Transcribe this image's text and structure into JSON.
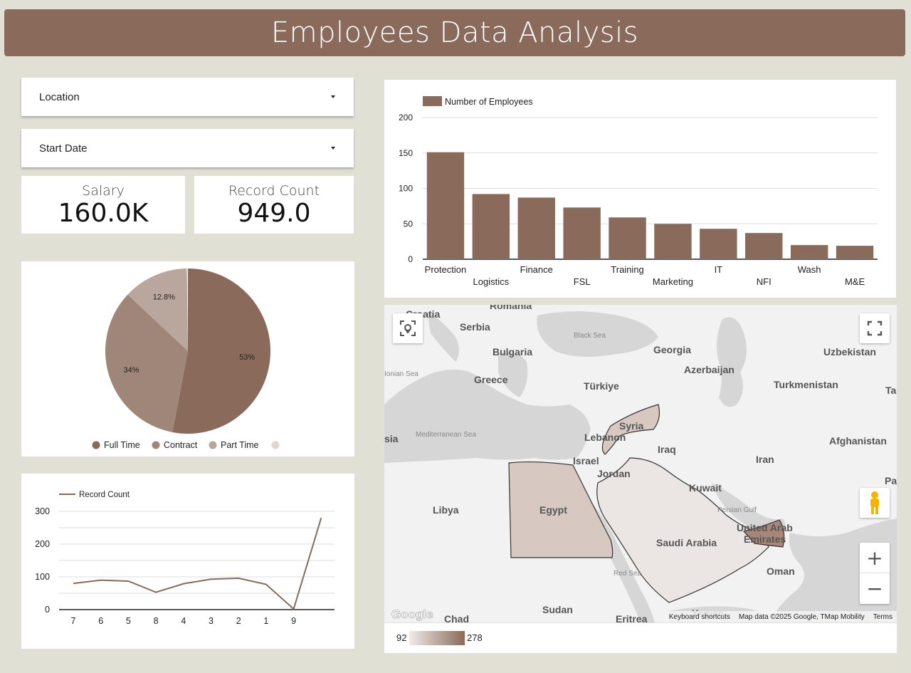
{
  "title": "Employees Data Analysis",
  "filters": {
    "location_label": "Location",
    "start_date_label": "Start Date"
  },
  "kpis": {
    "salary_label": "Salary",
    "salary_value": "160.0K",
    "record_count_label": "Record Count",
    "record_count_value": "949.0"
  },
  "colors": {
    "brand": "#8a6a5a",
    "full_time": "#8a6a5a",
    "contract": "#a08678",
    "part_time": "#b9a69c",
    "other": "#e0d5cf"
  },
  "chart_data": [
    {
      "type": "bar",
      "legend": "Number of Employees",
      "categories": [
        "Protection",
        "Logistics",
        "Finance",
        "FSL",
        "Training",
        "Marketing",
        "IT",
        "NFI",
        "Wash",
        "M&E"
      ],
      "values": [
        151,
        92,
        87,
        73,
        59,
        50,
        43,
        37,
        20,
        19
      ],
      "yticks": [
        "0",
        "50",
        "100",
        "150",
        "200"
      ],
      "ylim": [
        0,
        200
      ]
    },
    {
      "type": "pie",
      "categories": [
        "Full Time",
        "Contract",
        "Part Time",
        ""
      ],
      "values": [
        53,
        34,
        12.8,
        0.2
      ],
      "labels": [
        "53%",
        "34%",
        "12.8%"
      ]
    },
    {
      "type": "line",
      "legend": "Record Count",
      "categories": [
        "7",
        "6",
        "5",
        "8",
        "4",
        "3",
        "2",
        "1",
        "9",
        ""
      ],
      "values": [
        80,
        90,
        87,
        53,
        79,
        93,
        96,
        77,
        2,
        280
      ],
      "yticks": [
        "0",
        "100",
        "200",
        "300"
      ],
      "ylim": [
        0,
        300
      ]
    }
  ],
  "map": {
    "labels": {
      "croatia": "Croatia",
      "romania": "Romania",
      "serbia": "Serbia",
      "black_sea": "Black Sea",
      "georgia": "Georgia",
      "uzbekistan": "Uzbekistan",
      "bulgaria": "Bulgaria",
      "azerbaijan": "Azerbaijan",
      "ionian_sea": "Ionian Sea",
      "greece": "Greece",
      "turkiye": "Türkiye",
      "turkmenistan": "Turkmenistan",
      "tajik": "Ta",
      "syria": "Syria",
      "asia": "sia",
      "mediterranean": "Mediterranean Sea",
      "lebanon": "Lebanon",
      "iraq": "Iraq",
      "afghanistan": "Afghanistan",
      "israel": "Israel",
      "iran": "Iran",
      "jordan": "Jordan",
      "pakistan": "Paki",
      "kuwait": "Kuwait",
      "libya": "Libya",
      "egypt": "Egypt",
      "persian_gulf": "Persian Gulf",
      "uae_1": "United Arab",
      "uae_2": "Emirates",
      "saudi": "Saudi Arabia",
      "red_sea": "Red Sea",
      "oman": "Oman",
      "sudan": "Sudan",
      "chad": "Chad",
      "eritrea": "Eritrea",
      "yemen": "Yemen"
    },
    "google_logo": "Google",
    "keyboard_shortcuts": "Keyboard shortcuts",
    "map_data": "Map data ©2025 Google, TMap Mobility",
    "terms": "Terms",
    "zoom_in": "+",
    "zoom_out": "−",
    "scale_min": "92",
    "scale_max": "278"
  }
}
